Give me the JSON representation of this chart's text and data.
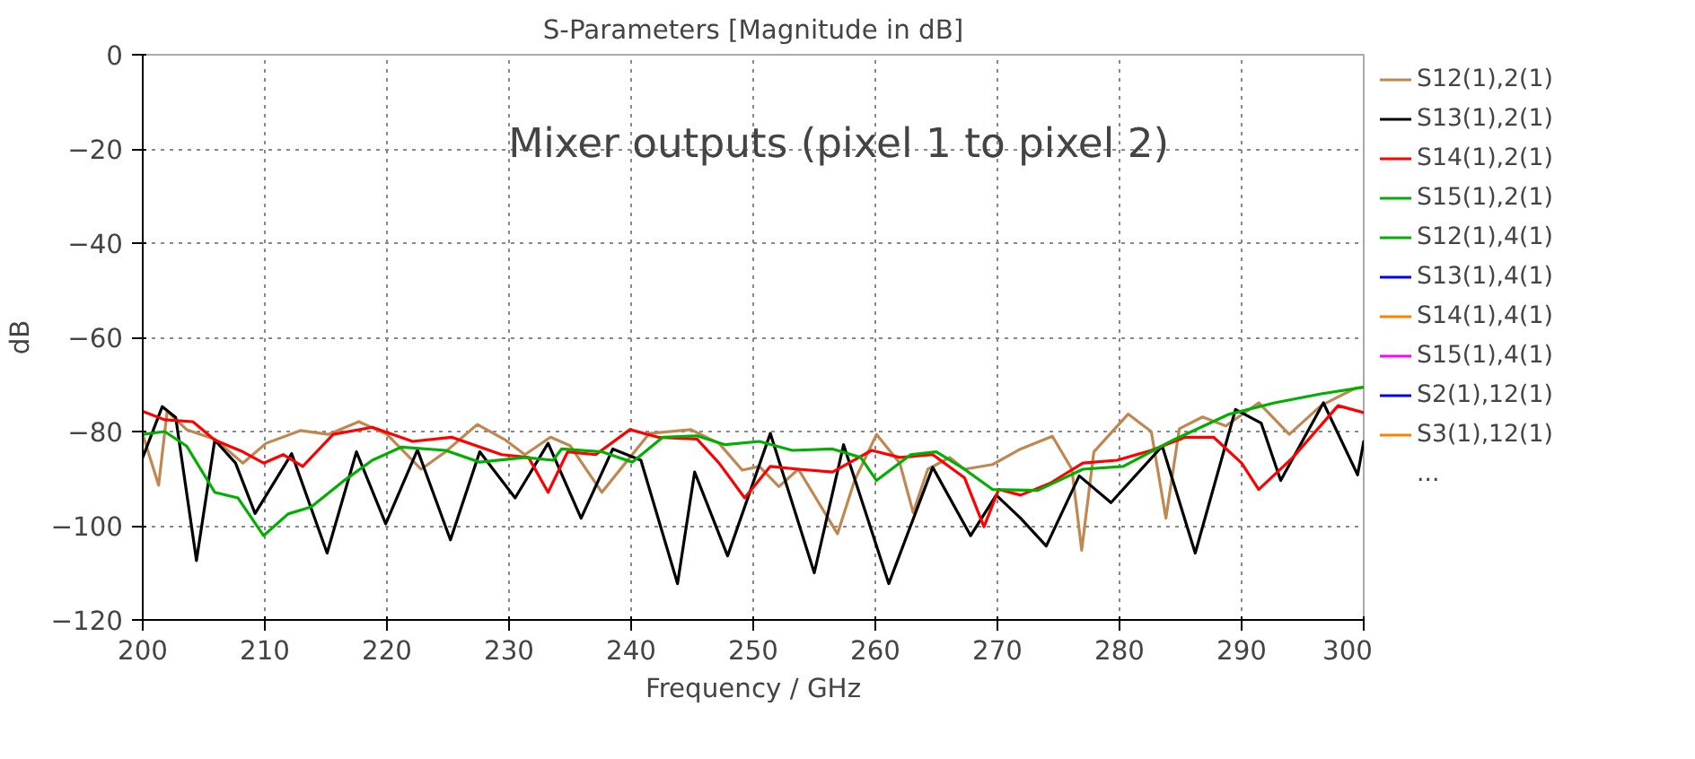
{
  "chart_data": {
    "type": "line",
    "title": "S-Parameters [Magnitude in dB]",
    "xlabel": "Frequency / GHz",
    "ylabel": "dB",
    "annotations": [
      "Mixer outputs (pixel 1 to pixel 2)",
      "..."
    ],
    "xlim": [
      200,
      300
    ],
    "ylim": [
      -120,
      0
    ],
    "xticks": [
      200,
      210,
      220,
      230,
      240,
      250,
      260,
      270,
      280,
      290,
      300
    ],
    "yticks": [
      -120,
      -100,
      -80,
      -60,
      -40,
      -20,
      0
    ],
    "grid": true,
    "legend": "right",
    "line_style": "solid",
    "marker": "none",
    "series": [
      {
        "name": "S12(1),2(1)",
        "color": "#c08850",
        "x": [
          200,
          201.3,
          202,
          203.6,
          205.9,
          208.2,
          210.1,
          212.9,
          215.2,
          217.7,
          220,
          222.8,
          224.8,
          227.4,
          229.7,
          231.3,
          233.4,
          235,
          237.6,
          239.9,
          241.5,
          244.9,
          247.2,
          249.1,
          250.5,
          252.1,
          253.7,
          256.9,
          258.3,
          260.1,
          262,
          263.1,
          264.3,
          266.1,
          267.3,
          269.6,
          271.9,
          274.5,
          276.1,
          276.9,
          277.9,
          280.7,
          282.6,
          283.8,
          284.9,
          286.8,
          288.7,
          291.4,
          293.9,
          296.5,
          299.3,
          300
        ],
        "values": [
          -80.6,
          -91.4,
          -75.7,
          -79.6,
          -81.6,
          -86.7,
          -82.5,
          -79.8,
          -80.6,
          -77.9,
          -80.6,
          -88,
          -84.3,
          -78.5,
          -81.8,
          -84.9,
          -81.2,
          -83,
          -92.9,
          -85.5,
          -80.4,
          -79.6,
          -82.5,
          -88.2,
          -87.4,
          -91.7,
          -88,
          -101.7,
          -90.4,
          -80.6,
          -86.7,
          -97.2,
          -88,
          -85.5,
          -88,
          -87,
          -83.7,
          -81,
          -88,
          -105.2,
          -84.3,
          -76.3,
          -80,
          -98.4,
          -79.4,
          -76.9,
          -78.8,
          -73.9,
          -80.6,
          -74.5,
          -70.8,
          -70.6
        ]
      },
      {
        "name": "S13(1),2(1)",
        "color": "#000000",
        "x": [
          200,
          201.6,
          202.7,
          204.4,
          205.9,
          207.6,
          209.2,
          212.2,
          215.1,
          217.5,
          219.9,
          222.5,
          225.2,
          227.6,
          230.5,
          233.2,
          235.9,
          238.5,
          240.8,
          243.8,
          245.2,
          247.9,
          251.4,
          255,
          257.4,
          261.1,
          264.7,
          267.8,
          269.9,
          271.9,
          274,
          276.7,
          279.3,
          283.5,
          286.2,
          289.5,
          291.6,
          293.2,
          296.7,
          299.5,
          300
        ],
        "values": [
          -85.5,
          -74.7,
          -77,
          -107.4,
          -81.8,
          -86.7,
          -97.4,
          -84.7,
          -105.8,
          -84.3,
          -99.6,
          -83.9,
          -103,
          -84.3,
          -94.1,
          -82.5,
          -98.4,
          -83.7,
          -86.1,
          -112.3,
          -88.6,
          -106.4,
          -80.4,
          -110,
          -82.8,
          -112.3,
          -87.6,
          -102.1,
          -93.5,
          -98.4,
          -104.3,
          -89.4,
          -95.1,
          -83.1,
          -105.8,
          -75.3,
          -78.2,
          -90.4,
          -73.9,
          -89.2,
          -82.1
        ]
      },
      {
        "name": "S14(1),2(1)",
        "color": "#ff0000",
        "x": [
          200,
          201.8,
          204.1,
          205.9,
          208.2,
          209.9,
          211.5,
          213.1,
          215.6,
          218.8,
          222.1,
          225.3,
          229.4,
          231.6,
          233.2,
          234.8,
          237.1,
          239.9,
          242.2,
          245.4,
          247.2,
          249.3,
          251.4,
          253.7,
          256.5,
          259.7,
          262,
          264.7,
          267.3,
          268.9,
          270.1,
          271.9,
          274.3,
          277,
          279.8,
          282.6,
          285.4,
          287.7,
          290,
          291.4,
          294.2,
          297.9,
          300
        ],
        "values": [
          -75.7,
          -77.5,
          -77.9,
          -81.8,
          -84.3,
          -86.7,
          -84.9,
          -87.4,
          -80.6,
          -79.1,
          -82.1,
          -81.2,
          -84.9,
          -85.5,
          -92.9,
          -84.3,
          -84.9,
          -79.6,
          -81.2,
          -81.6,
          -86.7,
          -94.1,
          -87.4,
          -88,
          -88.6,
          -84,
          -85.5,
          -84.9,
          -89.8,
          -100.2,
          -92.3,
          -93.5,
          -91,
          -86.7,
          -86.1,
          -84,
          -81.2,
          -81.2,
          -86.7,
          -92.3,
          -85.5,
          -74.5,
          -76
        ]
      },
      {
        "name": "S15(1),2(1)",
        "color": "#00b000",
        "x": [
          200,
          201.8,
          203.6,
          205.9,
          207.8,
          209.9,
          211.9,
          213.8,
          216.5,
          218.8,
          221.2,
          224.8,
          227.6,
          231.3,
          233.6,
          234.3,
          237.6,
          240.1,
          242.6,
          245.4,
          247.7,
          250.5,
          253.2,
          256.5,
          258.8,
          260.1,
          262.9,
          265,
          267.3,
          269.6,
          273.3,
          277,
          280.3,
          284.4,
          289,
          292.7,
          296.5,
          300
        ],
        "values": [
          -80.6,
          -80,
          -83.1,
          -92.9,
          -94.1,
          -102.1,
          -97.5,
          -96,
          -90.4,
          -86.1,
          -83.3,
          -84,
          -86.5,
          -85.5,
          -86.1,
          -83.7,
          -84.3,
          -86.5,
          -81.2,
          -80.9,
          -82.8,
          -82.1,
          -84,
          -83.7,
          -85.5,
          -90.4,
          -84.9,
          -84.3,
          -88,
          -92.3,
          -92.5,
          -88,
          -87.4,
          -81.8,
          -76.3,
          -73.9,
          -72,
          -70.6
        ]
      },
      {
        "name": "S12(1),4(1)",
        "color": "#00b000"
      },
      {
        "name": "S13(1),4(1)",
        "color": "#0000ff"
      },
      {
        "name": "S14(1),4(1)",
        "color": "#ff8000"
      },
      {
        "name": "S15(1),4(1)",
        "color": "#ff00ff"
      },
      {
        "name": "S2(1),12(1)",
        "color": "#0000ff"
      },
      {
        "name": "S3(1),12(1)",
        "color": "#ff8000"
      }
    ]
  }
}
